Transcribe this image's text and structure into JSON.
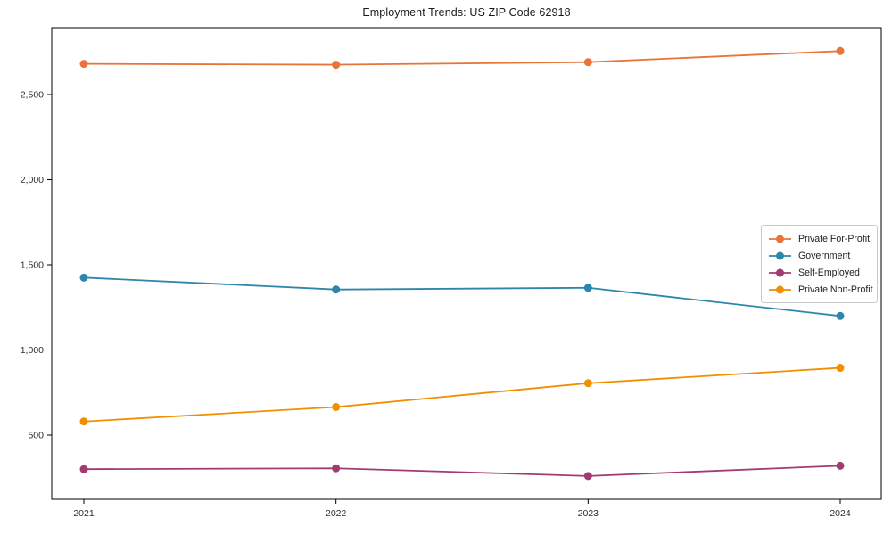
{
  "chart_data": {
    "type": "line",
    "title": "Employment Trends: US ZIP Code 62918",
    "xlabel": "",
    "ylabel": "",
    "x": [
      2021,
      2022,
      2023,
      2024
    ],
    "x_tick_labels": [
      "2021",
      "2022",
      "2023",
      "2024"
    ],
    "y_ticks": [
      500,
      1000,
      1500,
      2000,
      2500
    ],
    "y_tick_labels": [
      "500",
      "1,000",
      "1,500",
      "2,000",
      "2,500"
    ],
    "y_range_shown": [
      120,
      2890
    ],
    "grid": false,
    "legend_position": "center-right",
    "marker_style": "circle",
    "series": [
      {
        "name": "Private For-Profit",
        "color": "#e8743b",
        "values": [
          2680,
          2675,
          2690,
          2755
        ]
      },
      {
        "name": "Government",
        "color": "#2e86ab",
        "values": [
          1425,
          1355,
          1365,
          1200
        ]
      },
      {
        "name": "Self-Employed",
        "color": "#a23b72",
        "values": [
          300,
          305,
          260,
          320
        ]
      },
      {
        "name": "Private Non-Profit",
        "color": "#f18f01",
        "values": [
          580,
          665,
          805,
          895
        ]
      }
    ]
  },
  "frame": {
    "spine_color": "#000000",
    "background": "#ffffff"
  }
}
